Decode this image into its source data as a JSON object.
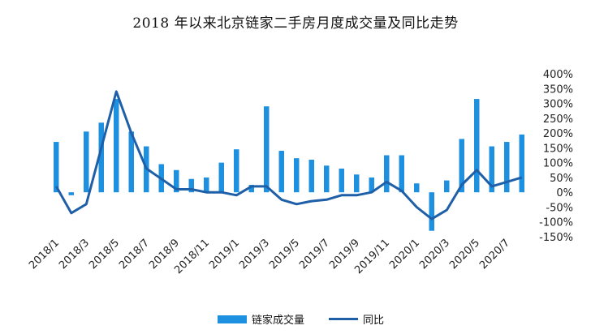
{
  "chart_data": {
    "type": "bar",
    "title": "2018 年以来北京链家二手房月度成交量及同比走势",
    "categories": [
      "2018/1",
      "2018/2",
      "2018/3",
      "2018/4",
      "2018/5",
      "2018/6",
      "2018/7",
      "2018/8",
      "2018/9",
      "2018/10",
      "2018/11",
      "2018/12",
      "2019/1",
      "2019/2",
      "2019/3",
      "2019/4",
      "2019/5",
      "2019/6",
      "2019/7",
      "2019/8",
      "2019/9",
      "2019/10",
      "2019/11",
      "2019/12",
      "2020/1",
      "2020/2",
      "2020/3",
      "2020/4",
      "2020/5",
      "2020/6",
      "2020/7",
      "2020/8"
    ],
    "x_tick_labels": [
      "2018/1",
      "2018/3",
      "2018/5",
      "2018/7",
      "2018/9",
      "2018/11",
      "2019/1",
      "2019/3",
      "2019/5",
      "2019/7",
      "2019/9",
      "2019/11",
      "2020/1",
      "2020/3",
      "2020/5",
      "2020/7"
    ],
    "series": [
      {
        "name": "链家成交量",
        "type": "bar",
        "axis": "right",
        "color": "#1e90e0",
        "values": [
          170,
          -10,
          205,
          235,
          315,
          205,
          155,
          95,
          75,
          45,
          50,
          100,
          145,
          25,
          290,
          140,
          115,
          110,
          90,
          80,
          60,
          50,
          125,
          125,
          30,
          -130,
          40,
          180,
          315,
          155,
          170,
          195
        ]
      },
      {
        "name": "同比",
        "type": "line",
        "axis": "right",
        "color": "#1f5fa8",
        "values": [
          20,
          -70,
          -40,
          150,
          340,
          200,
          80,
          45,
          10,
          10,
          0,
          0,
          -10,
          20,
          20,
          -25,
          -40,
          -30,
          -25,
          -10,
          -10,
          0,
          35,
          5,
          -50,
          -90,
          -60,
          25,
          75,
          20,
          35,
          50
        ]
      }
    ],
    "y_axis": {
      "position": "right",
      "ylim": [
        -150,
        400
      ],
      "tick_labels": [
        "400%",
        "350%",
        "300%",
        "250%",
        "200%",
        "150%",
        "100%",
        "50%",
        "0%",
        "-50%",
        "-100%",
        "-150%"
      ]
    },
    "legend": {
      "position": "bottom",
      "entries": [
        "链家成交量",
        "同比"
      ]
    },
    "grid": false
  }
}
